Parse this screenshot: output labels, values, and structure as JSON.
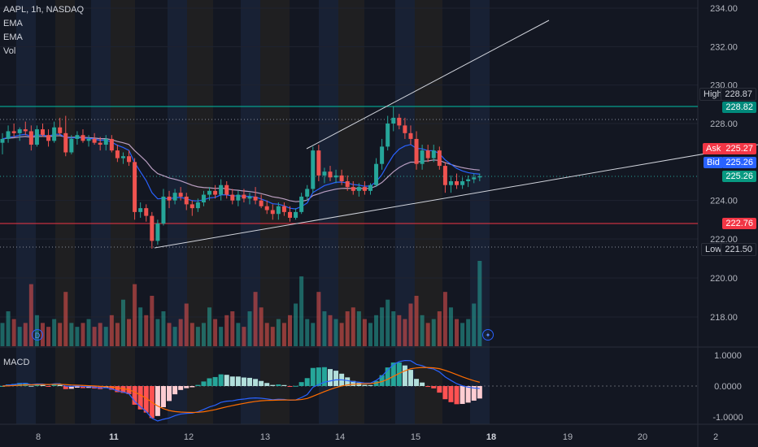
{
  "legend": {
    "symbol": "AAPL, 1h, NASDAQ",
    "indicators": [
      "EMA",
      "EMA",
      "Vol"
    ]
  },
  "macd_label": "MACD",
  "dividend_marker": "D",
  "price_axis": {
    "ticks": [
      "234.00",
      "232.00",
      "230.00",
      "228.00",
      "224.00",
      "222.00",
      "220.00",
      "218.00"
    ],
    "tick_values": [
      234,
      232,
      230,
      228,
      224,
      222,
      220,
      218
    ],
    "high_label": "High",
    "high_value": "228.87",
    "level_value": "228.82",
    "ask_label": "Ask",
    "ask_value": "225.27",
    "bid_label": "Bid",
    "bid_value": "225.26",
    "last_value": "225.26",
    "red_level_value": "222.76",
    "low_label": "Low",
    "low_value": "221.50"
  },
  "macd_axis": {
    "ticks": [
      "1.0000",
      "0.0000",
      "-1.0000"
    ]
  },
  "time_axis": {
    "labels": [
      "8",
      "11",
      "12",
      "13",
      "14",
      "15",
      "18",
      "19",
      "20",
      "2"
    ],
    "bold": [
      "11",
      "18"
    ]
  },
  "colors": {
    "up": "#26a69a",
    "down": "#ef5350",
    "ema_fast": "#2962ff",
    "ema_slow": "#e1bee7",
    "high_line": "#00bfa5",
    "red_line": "#f23645"
  },
  "chart_data": {
    "type": "candlestick",
    "title": "AAPL, 1h, NASDAQ",
    "ylim": [
      217.2,
      234.2
    ],
    "candles": [
      {
        "o": 227.0,
        "h": 227.5,
        "l": 226.4,
        "c": 227.2
      },
      {
        "o": 227.2,
        "h": 227.9,
        "l": 227.0,
        "c": 227.6
      },
      {
        "o": 227.6,
        "h": 228.0,
        "l": 227.3,
        "c": 227.5
      },
      {
        "o": 227.5,
        "h": 227.8,
        "l": 227.1,
        "c": 227.7
      },
      {
        "o": 227.7,
        "h": 228.1,
        "l": 227.4,
        "c": 227.6
      },
      {
        "o": 227.6,
        "h": 227.9,
        "l": 226.6,
        "c": 226.9
      },
      {
        "o": 226.9,
        "h": 227.9,
        "l": 226.8,
        "c": 227.7
      },
      {
        "o": 227.7,
        "h": 228.0,
        "l": 227.3,
        "c": 227.4
      },
      {
        "o": 227.4,
        "h": 227.7,
        "l": 226.8,
        "c": 227.1
      },
      {
        "o": 227.1,
        "h": 228.1,
        "l": 227.0,
        "c": 227.8
      },
      {
        "o": 227.8,
        "h": 228.3,
        "l": 227.4,
        "c": 227.5
      },
      {
        "o": 227.5,
        "h": 228.4,
        "l": 226.3,
        "c": 226.5
      },
      {
        "o": 226.5,
        "h": 227.4,
        "l": 226.4,
        "c": 227.2
      },
      {
        "o": 227.2,
        "h": 227.6,
        "l": 226.9,
        "c": 227.4
      },
      {
        "o": 227.4,
        "h": 227.7,
        "l": 227.0,
        "c": 227.1
      },
      {
        "o": 227.1,
        "h": 227.4,
        "l": 226.8,
        "c": 227.2
      },
      {
        "o": 227.2,
        "h": 227.5,
        "l": 226.9,
        "c": 227.0
      },
      {
        "o": 227.0,
        "h": 227.3,
        "l": 226.6,
        "c": 226.9
      },
      {
        "o": 226.9,
        "h": 227.4,
        "l": 226.6,
        "c": 227.2
      },
      {
        "o": 227.2,
        "h": 227.4,
        "l": 226.5,
        "c": 226.6
      },
      {
        "o": 226.6,
        "h": 226.9,
        "l": 226.0,
        "c": 226.2
      },
      {
        "o": 226.2,
        "h": 226.5,
        "l": 225.9,
        "c": 226.3
      },
      {
        "o": 226.3,
        "h": 226.6,
        "l": 225.8,
        "c": 226.0
      },
      {
        "o": 226.0,
        "h": 226.2,
        "l": 223.0,
        "c": 223.4
      },
      {
        "o": 223.4,
        "h": 223.9,
        "l": 223.1,
        "c": 223.6
      },
      {
        "o": 223.6,
        "h": 223.8,
        "l": 222.9,
        "c": 223.2
      },
      {
        "o": 223.2,
        "h": 223.4,
        "l": 221.5,
        "c": 221.9
      },
      {
        "o": 221.9,
        "h": 223.0,
        "l": 221.7,
        "c": 222.8
      },
      {
        "o": 222.8,
        "h": 224.6,
        "l": 222.7,
        "c": 224.2
      },
      {
        "o": 224.2,
        "h": 224.5,
        "l": 223.6,
        "c": 224.0
      },
      {
        "o": 224.0,
        "h": 224.6,
        "l": 223.8,
        "c": 224.4
      },
      {
        "o": 224.4,
        "h": 224.7,
        "l": 224.0,
        "c": 224.2
      },
      {
        "o": 224.2,
        "h": 224.4,
        "l": 223.5,
        "c": 223.8
      },
      {
        "o": 223.8,
        "h": 224.0,
        "l": 223.2,
        "c": 223.6
      },
      {
        "o": 223.6,
        "h": 224.1,
        "l": 223.4,
        "c": 223.9
      },
      {
        "o": 223.9,
        "h": 224.5,
        "l": 223.7,
        "c": 224.3
      },
      {
        "o": 224.3,
        "h": 224.7,
        "l": 224.0,
        "c": 224.5
      },
      {
        "o": 224.5,
        "h": 224.8,
        "l": 224.1,
        "c": 224.3
      },
      {
        "o": 224.3,
        "h": 225.1,
        "l": 224.0,
        "c": 224.8
      },
      {
        "o": 224.8,
        "h": 225.0,
        "l": 224.1,
        "c": 224.3
      },
      {
        "o": 224.3,
        "h": 224.6,
        "l": 223.8,
        "c": 224.0
      },
      {
        "o": 224.0,
        "h": 224.5,
        "l": 223.7,
        "c": 224.3
      },
      {
        "o": 224.3,
        "h": 224.6,
        "l": 223.9,
        "c": 224.1
      },
      {
        "o": 224.1,
        "h": 224.4,
        "l": 223.8,
        "c": 224.2
      },
      {
        "o": 224.2,
        "h": 224.7,
        "l": 223.8,
        "c": 224.0
      },
      {
        "o": 224.0,
        "h": 224.3,
        "l": 223.6,
        "c": 223.7
      },
      {
        "o": 223.7,
        "h": 224.0,
        "l": 223.3,
        "c": 223.5
      },
      {
        "o": 223.5,
        "h": 223.8,
        "l": 223.0,
        "c": 223.3
      },
      {
        "o": 223.3,
        "h": 223.9,
        "l": 223.0,
        "c": 223.7
      },
      {
        "o": 223.7,
        "h": 223.9,
        "l": 223.2,
        "c": 223.4
      },
      {
        "o": 223.4,
        "h": 223.7,
        "l": 222.9,
        "c": 223.1
      },
      {
        "o": 223.1,
        "h": 223.6,
        "l": 223.0,
        "c": 223.4
      },
      {
        "o": 223.4,
        "h": 224.4,
        "l": 223.3,
        "c": 224.2
      },
      {
        "o": 224.2,
        "h": 224.8,
        "l": 224.0,
        "c": 224.6
      },
      {
        "o": 224.6,
        "h": 226.8,
        "l": 224.4,
        "c": 226.6
      },
      {
        "o": 226.6,
        "h": 226.9,
        "l": 225.0,
        "c": 225.3
      },
      {
        "o": 225.3,
        "h": 225.7,
        "l": 224.9,
        "c": 225.5
      },
      {
        "o": 225.5,
        "h": 225.8,
        "l": 225.0,
        "c": 225.2
      },
      {
        "o": 225.2,
        "h": 225.6,
        "l": 224.9,
        "c": 225.3
      },
      {
        "o": 225.3,
        "h": 225.6,
        "l": 224.8,
        "c": 225.0
      },
      {
        "o": 225.0,
        "h": 225.3,
        "l": 224.5,
        "c": 224.7
      },
      {
        "o": 224.7,
        "h": 225.0,
        "l": 224.3,
        "c": 224.5
      },
      {
        "o": 224.5,
        "h": 224.9,
        "l": 224.2,
        "c": 224.7
      },
      {
        "o": 224.7,
        "h": 225.0,
        "l": 224.3,
        "c": 224.5
      },
      {
        "o": 224.5,
        "h": 224.9,
        "l": 224.3,
        "c": 224.8
      },
      {
        "o": 224.8,
        "h": 226.2,
        "l": 224.7,
        "c": 225.9
      },
      {
        "o": 225.9,
        "h": 227.2,
        "l": 225.6,
        "c": 226.8
      },
      {
        "o": 226.8,
        "h": 228.4,
        "l": 226.6,
        "c": 228.0
      },
      {
        "o": 228.0,
        "h": 228.87,
        "l": 227.6,
        "c": 228.3
      },
      {
        "o": 228.3,
        "h": 228.5,
        "l": 227.7,
        "c": 227.9
      },
      {
        "o": 227.9,
        "h": 228.3,
        "l": 227.2,
        "c": 227.5
      },
      {
        "o": 227.5,
        "h": 227.9,
        "l": 226.9,
        "c": 227.2
      },
      {
        "o": 227.2,
        "h": 227.6,
        "l": 225.6,
        "c": 225.9
      },
      {
        "o": 225.9,
        "h": 226.9,
        "l": 225.6,
        "c": 226.6
      },
      {
        "o": 226.6,
        "h": 226.9,
        "l": 226.0,
        "c": 226.2
      },
      {
        "o": 226.2,
        "h": 226.9,
        "l": 226.0,
        "c": 226.6
      },
      {
        "o": 226.6,
        "h": 226.8,
        "l": 225.6,
        "c": 225.8
      },
      {
        "o": 225.8,
        "h": 226.0,
        "l": 224.4,
        "c": 224.8
      },
      {
        "o": 224.8,
        "h": 225.3,
        "l": 224.4,
        "c": 225.0
      },
      {
        "o": 225.0,
        "h": 225.4,
        "l": 224.6,
        "c": 224.8
      },
      {
        "o": 224.8,
        "h": 225.2,
        "l": 224.6,
        "c": 225.0
      },
      {
        "o": 225.0,
        "h": 225.3,
        "l": 224.7,
        "c": 225.1
      },
      {
        "o": 225.1,
        "h": 225.4,
        "l": 224.9,
        "c": 225.2
      },
      {
        "o": 225.2,
        "h": 225.4,
        "l": 225.0,
        "c": 225.26
      }
    ],
    "volume": [
      6,
      9,
      7,
      5,
      6,
      16,
      8,
      6,
      5,
      7,
      6,
      14,
      6,
      5,
      6,
      7,
      5,
      6,
      5,
      8,
      6,
      12,
      7,
      16,
      10,
      8,
      13,
      7,
      9,
      6,
      5,
      7,
      11,
      6,
      5,
      6,
      10,
      7,
      5,
      8,
      9,
      6,
      5,
      9,
      14,
      10,
      6,
      5,
      7,
      6,
      8,
      11,
      18,
      7,
      6,
      14,
      9,
      8,
      7,
      6,
      9,
      10,
      9,
      7,
      6,
      8,
      10,
      12,
      9,
      8,
      7,
      11,
      13,
      8,
      6,
      7,
      9,
      14,
      10,
      7,
      6,
      7,
      11,
      22
    ]
  }
}
